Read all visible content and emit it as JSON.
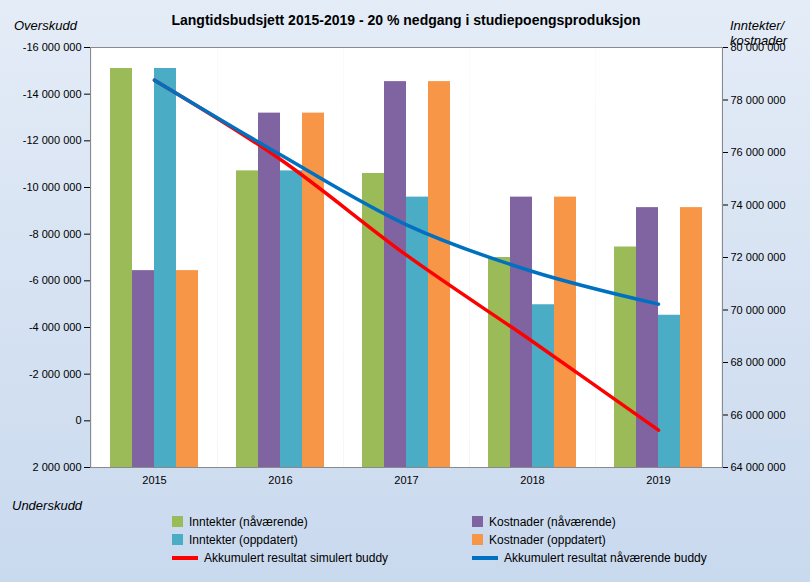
{
  "chart_data": {
    "type": "bar",
    "title": "Langtidsbudsjett 2015-2019 - 20 % nedgang i studiepoengsproduksjon",
    "ylabel_top": "Overskudd",
    "ylabel_bottom": "Underskudd",
    "y2label": "Inntekter/ kostnader",
    "categories": [
      "2015",
      "2016",
      "2017",
      "2018",
      "2019"
    ],
    "series": [
      {
        "name": "Inntekter (nåværende)",
        "type": "bar",
        "axis": "y2",
        "color": "#9bbb59",
        "values": [
          79200000,
          75300000,
          75200000,
          72000000,
          72400000
        ]
      },
      {
        "name": "Kostnader (nåværende)",
        "type": "bar",
        "axis": "y2",
        "color": "#8064a2",
        "values": [
          71500000,
          77500000,
          78700000,
          74300000,
          73900000
        ]
      },
      {
        "name": "Inntekter (oppdatert)",
        "type": "bar",
        "axis": "y2",
        "color": "#4bacc6",
        "values": [
          79200000,
          75300000,
          74300000,
          70200000,
          69800000
        ]
      },
      {
        "name": "Kostnader (oppdatert)",
        "type": "bar",
        "axis": "y2",
        "color": "#f79646",
        "values": [
          71500000,
          77500000,
          78700000,
          74300000,
          73900000
        ]
      },
      {
        "name": "Akkumulert resultat simulert buddy",
        "type": "line",
        "color": "#ff0000",
        "values": [
          -14600000,
          -11200000,
          -7100000,
          -3400000,
          400000
        ]
      },
      {
        "name": "Akkumulert resultat nåværende buddy",
        "type": "line",
        "color": "#0070c0",
        "values": [
          -14600000,
          -11400000,
          -8400000,
          -6400000,
          -5000000
        ]
      }
    ],
    "ylim": [
      2000000,
      -16000000
    ],
    "yticks": [
      {
        "value": -16000000,
        "label": "-16 000 000"
      },
      {
        "value": -14000000,
        "label": "-14 000 000"
      },
      {
        "value": -12000000,
        "label": "-12 000 000"
      },
      {
        "value": -10000000,
        "label": "-10 000 000"
      },
      {
        "value": -8000000,
        "label": "-8 000 000"
      },
      {
        "value": -6000000,
        "label": "-6 000 000"
      },
      {
        "value": -4000000,
        "label": "-4 000 000"
      },
      {
        "value": -2000000,
        "label": "-2 000 000"
      },
      0,
      {
        "value": 2000000,
        "label": "2 000 000"
      }
    ],
    "y2lim": [
      64000000,
      80000000
    ],
    "y2ticks": [
      {
        "value": 64000000,
        "label": "64 000 000"
      },
      {
        "value": 66000000,
        "label": "66 000 000"
      },
      {
        "value": 68000000,
        "label": "68 000 000"
      },
      {
        "value": 70000000,
        "label": "70 000 000"
      },
      {
        "value": 72000000,
        "label": "72 000 000"
      },
      {
        "value": 74000000,
        "label": "74 000 000"
      },
      {
        "value": 76000000,
        "label": "76 000 000"
      },
      {
        "value": 78000000,
        "label": "78 000 000"
      },
      {
        "value": 80000000,
        "label": "80 000 000"
      }
    ],
    "grid": false,
    "legend": "bottom"
  }
}
